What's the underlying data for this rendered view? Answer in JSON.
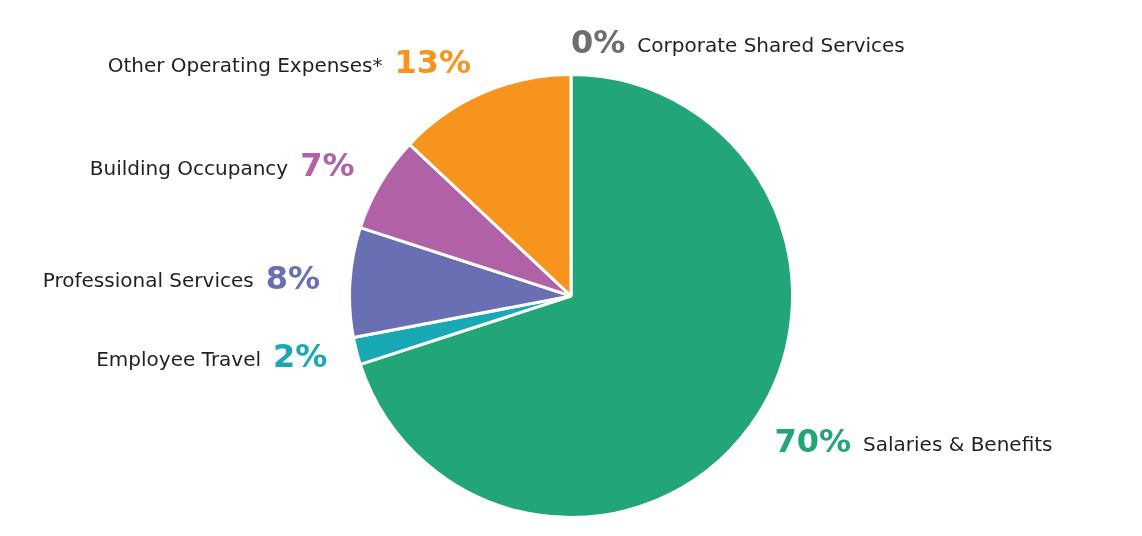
{
  "chart_data": {
    "type": "pie",
    "categories": [
      "Salaries & Benefits",
      "Employee Travel",
      "Professional Services",
      "Building Occupancy",
      "Other Operating Expenses*",
      "Corporate Shared Services"
    ],
    "values": [
      70,
      2,
      8,
      7,
      13,
      0
    ],
    "colors": [
      "#22a677",
      "#18a9b5",
      "#6a6fb3",
      "#b162a6",
      "#f7941d",
      "#6d6e71"
    ],
    "value_labels": [
      "70%",
      "2%",
      "8%",
      "7%",
      "13%",
      "0%"
    ],
    "legend": false
  }
}
